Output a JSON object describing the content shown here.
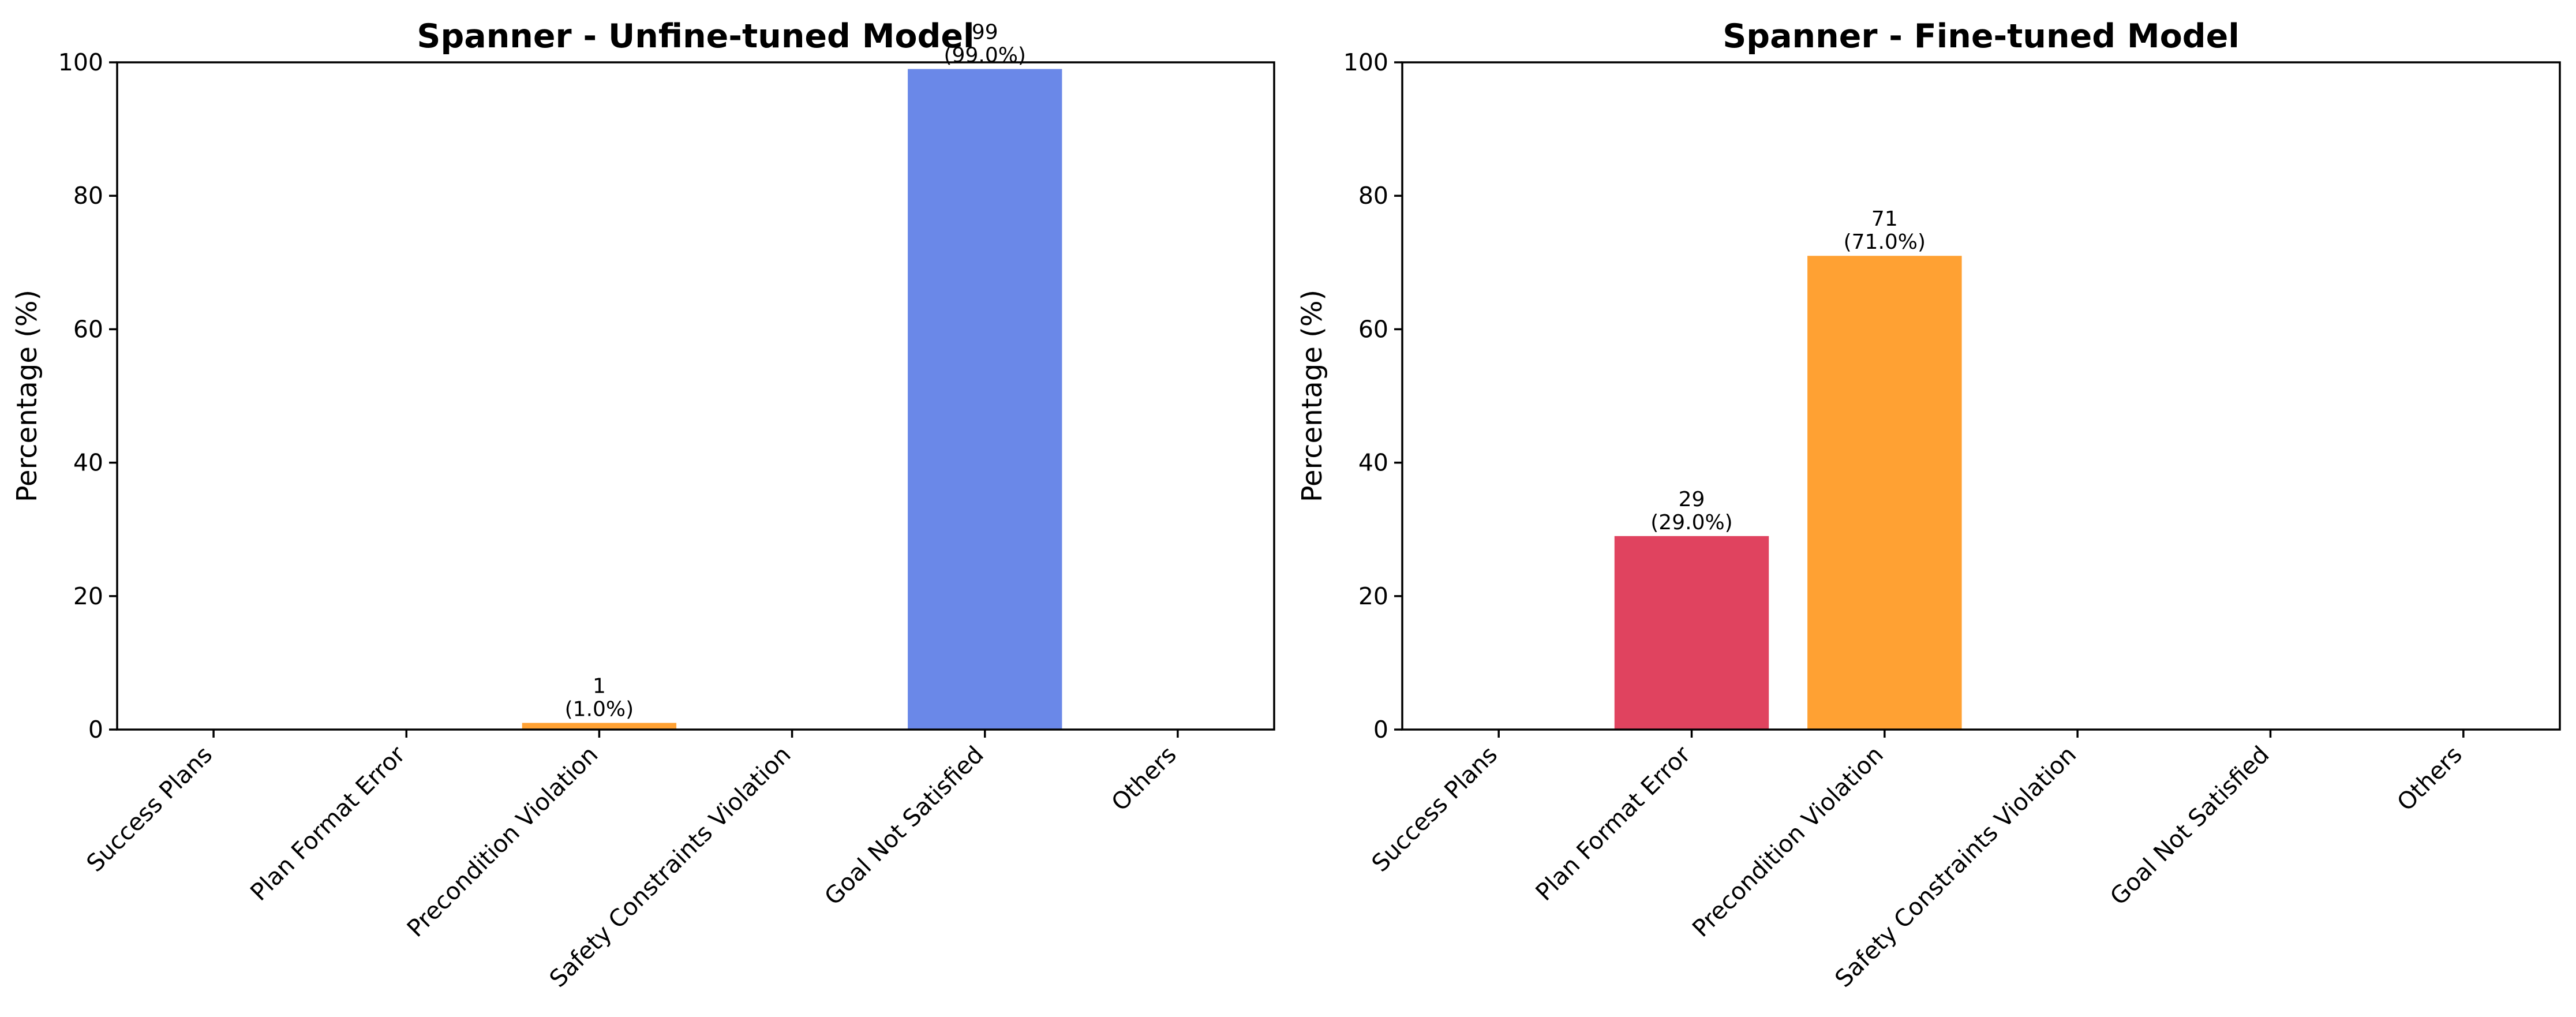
{
  "colors": {
    "red": "#E0435F",
    "orange": "#FFA133",
    "blue": "#6A88E8",
    "axis": "#000000",
    "background": "#FFFFFF"
  },
  "chart_data": [
    {
      "type": "bar",
      "title": "Spanner - Unfine-tuned Model",
      "xlabel": "",
      "ylabel": "Percentage (%)",
      "ylim": [
        0,
        100
      ],
      "yticks": [
        0,
        20,
        40,
        60,
        80,
        100
      ],
      "grid": false,
      "categories": [
        "Success Plans",
        "Plan Format Error",
        "Precondition Violation",
        "Safety Constraints Violation",
        "Goal Not Satisfied",
        "Others"
      ],
      "values": [
        0,
        0,
        1.0,
        0,
        99.0,
        0
      ],
      "bar_colors": [
        "#E0435F",
        "#E0435F",
        "#FFA133",
        "#FFA133",
        "#6A88E8",
        "#6A88E8"
      ],
      "data_labels": [
        {
          "index": 2,
          "count": "1",
          "percent": "(1.0%)"
        },
        {
          "index": 4,
          "count": "99",
          "percent": "(99.0%)"
        }
      ]
    },
    {
      "type": "bar",
      "title": "Spanner - Fine-tuned Model",
      "xlabel": "",
      "ylabel": "Percentage (%)",
      "ylim": [
        0,
        100
      ],
      "yticks": [
        0,
        20,
        40,
        60,
        80,
        100
      ],
      "grid": false,
      "categories": [
        "Success Plans",
        "Plan Format Error",
        "Precondition Violation",
        "Safety Constraints Violation",
        "Goal Not Satisfied",
        "Others"
      ],
      "values": [
        0,
        29.0,
        71.0,
        0,
        0,
        0
      ],
      "bar_colors": [
        "#E0435F",
        "#E0435F",
        "#FFA133",
        "#FFA133",
        "#6A88E8",
        "#6A88E8"
      ],
      "data_labels": [
        {
          "index": 1,
          "count": "29",
          "percent": "(29.0%)"
        },
        {
          "index": 2,
          "count": "71",
          "percent": "(71.0%)"
        }
      ]
    }
  ]
}
